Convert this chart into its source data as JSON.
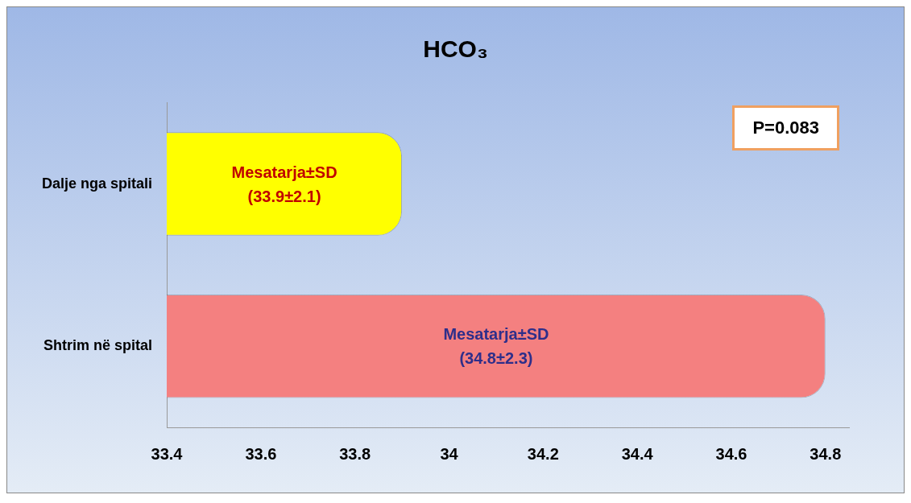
{
  "chart_data": {
    "type": "bar",
    "orientation": "horizontal",
    "title": "HCO₃",
    "categories": [
      "Dalje nga spitali",
      "Shtrim në spital"
    ],
    "values": [
      33.9,
      34.8
    ],
    "colors": [
      "#ffff00",
      "#f48080"
    ],
    "value_labels": [
      "Mesatarja±SD\n(33.9±2.1)",
      "Mesatarja±SD\n(34.8±2.3)"
    ],
    "xlim": [
      33.4,
      34.85
    ],
    "xticks": [
      33.4,
      33.6,
      33.8,
      34,
      34.2,
      34.4,
      34.6,
      34.8
    ],
    "annotations": [
      "P=0.083"
    ],
    "grid": false,
    "legend": false
  }
}
